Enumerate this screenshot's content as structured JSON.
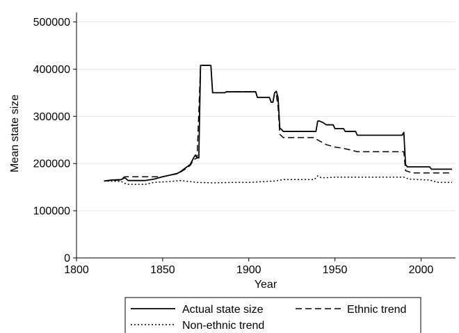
{
  "chart_data": {
    "type": "line",
    "xlabel": "Year",
    "ylabel": "Mean state size",
    "xlim": [
      1800,
      2020
    ],
    "ylim": [
      0,
      520000
    ],
    "x_ticks": [
      1800,
      1850,
      1900,
      1950,
      2000
    ],
    "y_ticks": [
      0,
      100000,
      200000,
      300000,
      400000,
      500000
    ],
    "grid": "horizontal",
    "legend": {
      "position": "bottom",
      "entries": [
        "Actual state size",
        "Ethnic trend",
        "Non-ethnic trend"
      ]
    },
    "series": [
      {
        "name": "Actual state size",
        "style": "solid",
        "points": [
          [
            1816,
            163000
          ],
          [
            1820,
            165000
          ],
          [
            1826,
            166000
          ],
          [
            1828,
            170000
          ],
          [
            1830,
            164000
          ],
          [
            1840,
            164000
          ],
          [
            1845,
            167000
          ],
          [
            1850,
            172000
          ],
          [
            1855,
            176000
          ],
          [
            1858,
            178000
          ],
          [
            1860,
            182000
          ],
          [
            1863,
            190000
          ],
          [
            1866,
            198000
          ],
          [
            1868,
            212000
          ],
          [
            1869,
            218000
          ],
          [
            1870,
            212000
          ],
          [
            1871,
            212000
          ],
          [
            1872,
            408000
          ],
          [
            1878,
            408000
          ],
          [
            1879,
            350000
          ],
          [
            1886,
            350000
          ],
          [
            1887,
            352000
          ],
          [
            1904,
            352000
          ],
          [
            1905,
            340000
          ],
          [
            1912,
            340000
          ],
          [
            1913,
            330000
          ],
          [
            1914,
            330000
          ],
          [
            1915,
            350000
          ],
          [
            1916,
            353000
          ],
          [
            1917,
            340000
          ],
          [
            1918,
            275000
          ],
          [
            1919,
            272000
          ],
          [
            1920,
            268000
          ],
          [
            1939,
            268000
          ],
          [
            1940,
            290000
          ],
          [
            1941,
            290000
          ],
          [
            1943,
            287000
          ],
          [
            1945,
            282000
          ],
          [
            1949,
            282000
          ],
          [
            1950,
            274000
          ],
          [
            1955,
            274000
          ],
          [
            1956,
            268000
          ],
          [
            1962,
            268000
          ],
          [
            1963,
            260000
          ],
          [
            1989,
            260000
          ],
          [
            1990,
            266000
          ],
          [
            1991,
            198000
          ],
          [
            1992,
            193000
          ],
          [
            2005,
            193000
          ],
          [
            2006,
            188000
          ],
          [
            2018,
            188000
          ]
        ]
      },
      {
        "name": "Ethnic trend",
        "style": "dashed",
        "points": [
          [
            1816,
            163000
          ],
          [
            1825,
            165000
          ],
          [
            1828,
            172000
          ],
          [
            1850,
            172000
          ],
          [
            1855,
            176000
          ],
          [
            1860,
            181000
          ],
          [
            1863,
            188000
          ],
          [
            1866,
            196000
          ],
          [
            1868,
            208000
          ],
          [
            1870,
            212000
          ],
          [
            1872,
            408000
          ],
          [
            1878,
            408000
          ],
          [
            1879,
            350000
          ],
          [
            1886,
            350000
          ],
          [
            1887,
            352000
          ],
          [
            1904,
            352000
          ],
          [
            1905,
            340000
          ],
          [
            1912,
            340000
          ],
          [
            1913,
            330000
          ],
          [
            1914,
            330000
          ],
          [
            1915,
            350000
          ],
          [
            1916,
            345000
          ],
          [
            1917,
            320000
          ],
          [
            1918,
            262000
          ],
          [
            1920,
            255000
          ],
          [
            1938,
            255000
          ],
          [
            1940,
            250000
          ],
          [
            1945,
            240000
          ],
          [
            1950,
            235000
          ],
          [
            1955,
            232000
          ],
          [
            1960,
            228000
          ],
          [
            1963,
            225000
          ],
          [
            1990,
            225000
          ],
          [
            1991,
            185000
          ],
          [
            1995,
            180000
          ],
          [
            2018,
            180000
          ]
        ]
      },
      {
        "name": "Non-ethnic trend",
        "style": "dotted",
        "points": [
          [
            1816,
            163000
          ],
          [
            1826,
            162000
          ],
          [
            1828,
            158000
          ],
          [
            1830,
            156000
          ],
          [
            1840,
            156000
          ],
          [
            1845,
            160000
          ],
          [
            1855,
            162000
          ],
          [
            1860,
            164000
          ],
          [
            1870,
            160000
          ],
          [
            1880,
            159000
          ],
          [
            1890,
            160000
          ],
          [
            1900,
            160000
          ],
          [
            1905,
            161000
          ],
          [
            1915,
            163000
          ],
          [
            1920,
            166000
          ],
          [
            1938,
            166000
          ],
          [
            1940,
            174000
          ],
          [
            1942,
            170000
          ],
          [
            1945,
            170000
          ],
          [
            1950,
            171000
          ],
          [
            1990,
            171000
          ],
          [
            1993,
            167000
          ],
          [
            2005,
            165000
          ],
          [
            2010,
            160000
          ],
          [
            2018,
            160000
          ]
        ]
      }
    ]
  }
}
